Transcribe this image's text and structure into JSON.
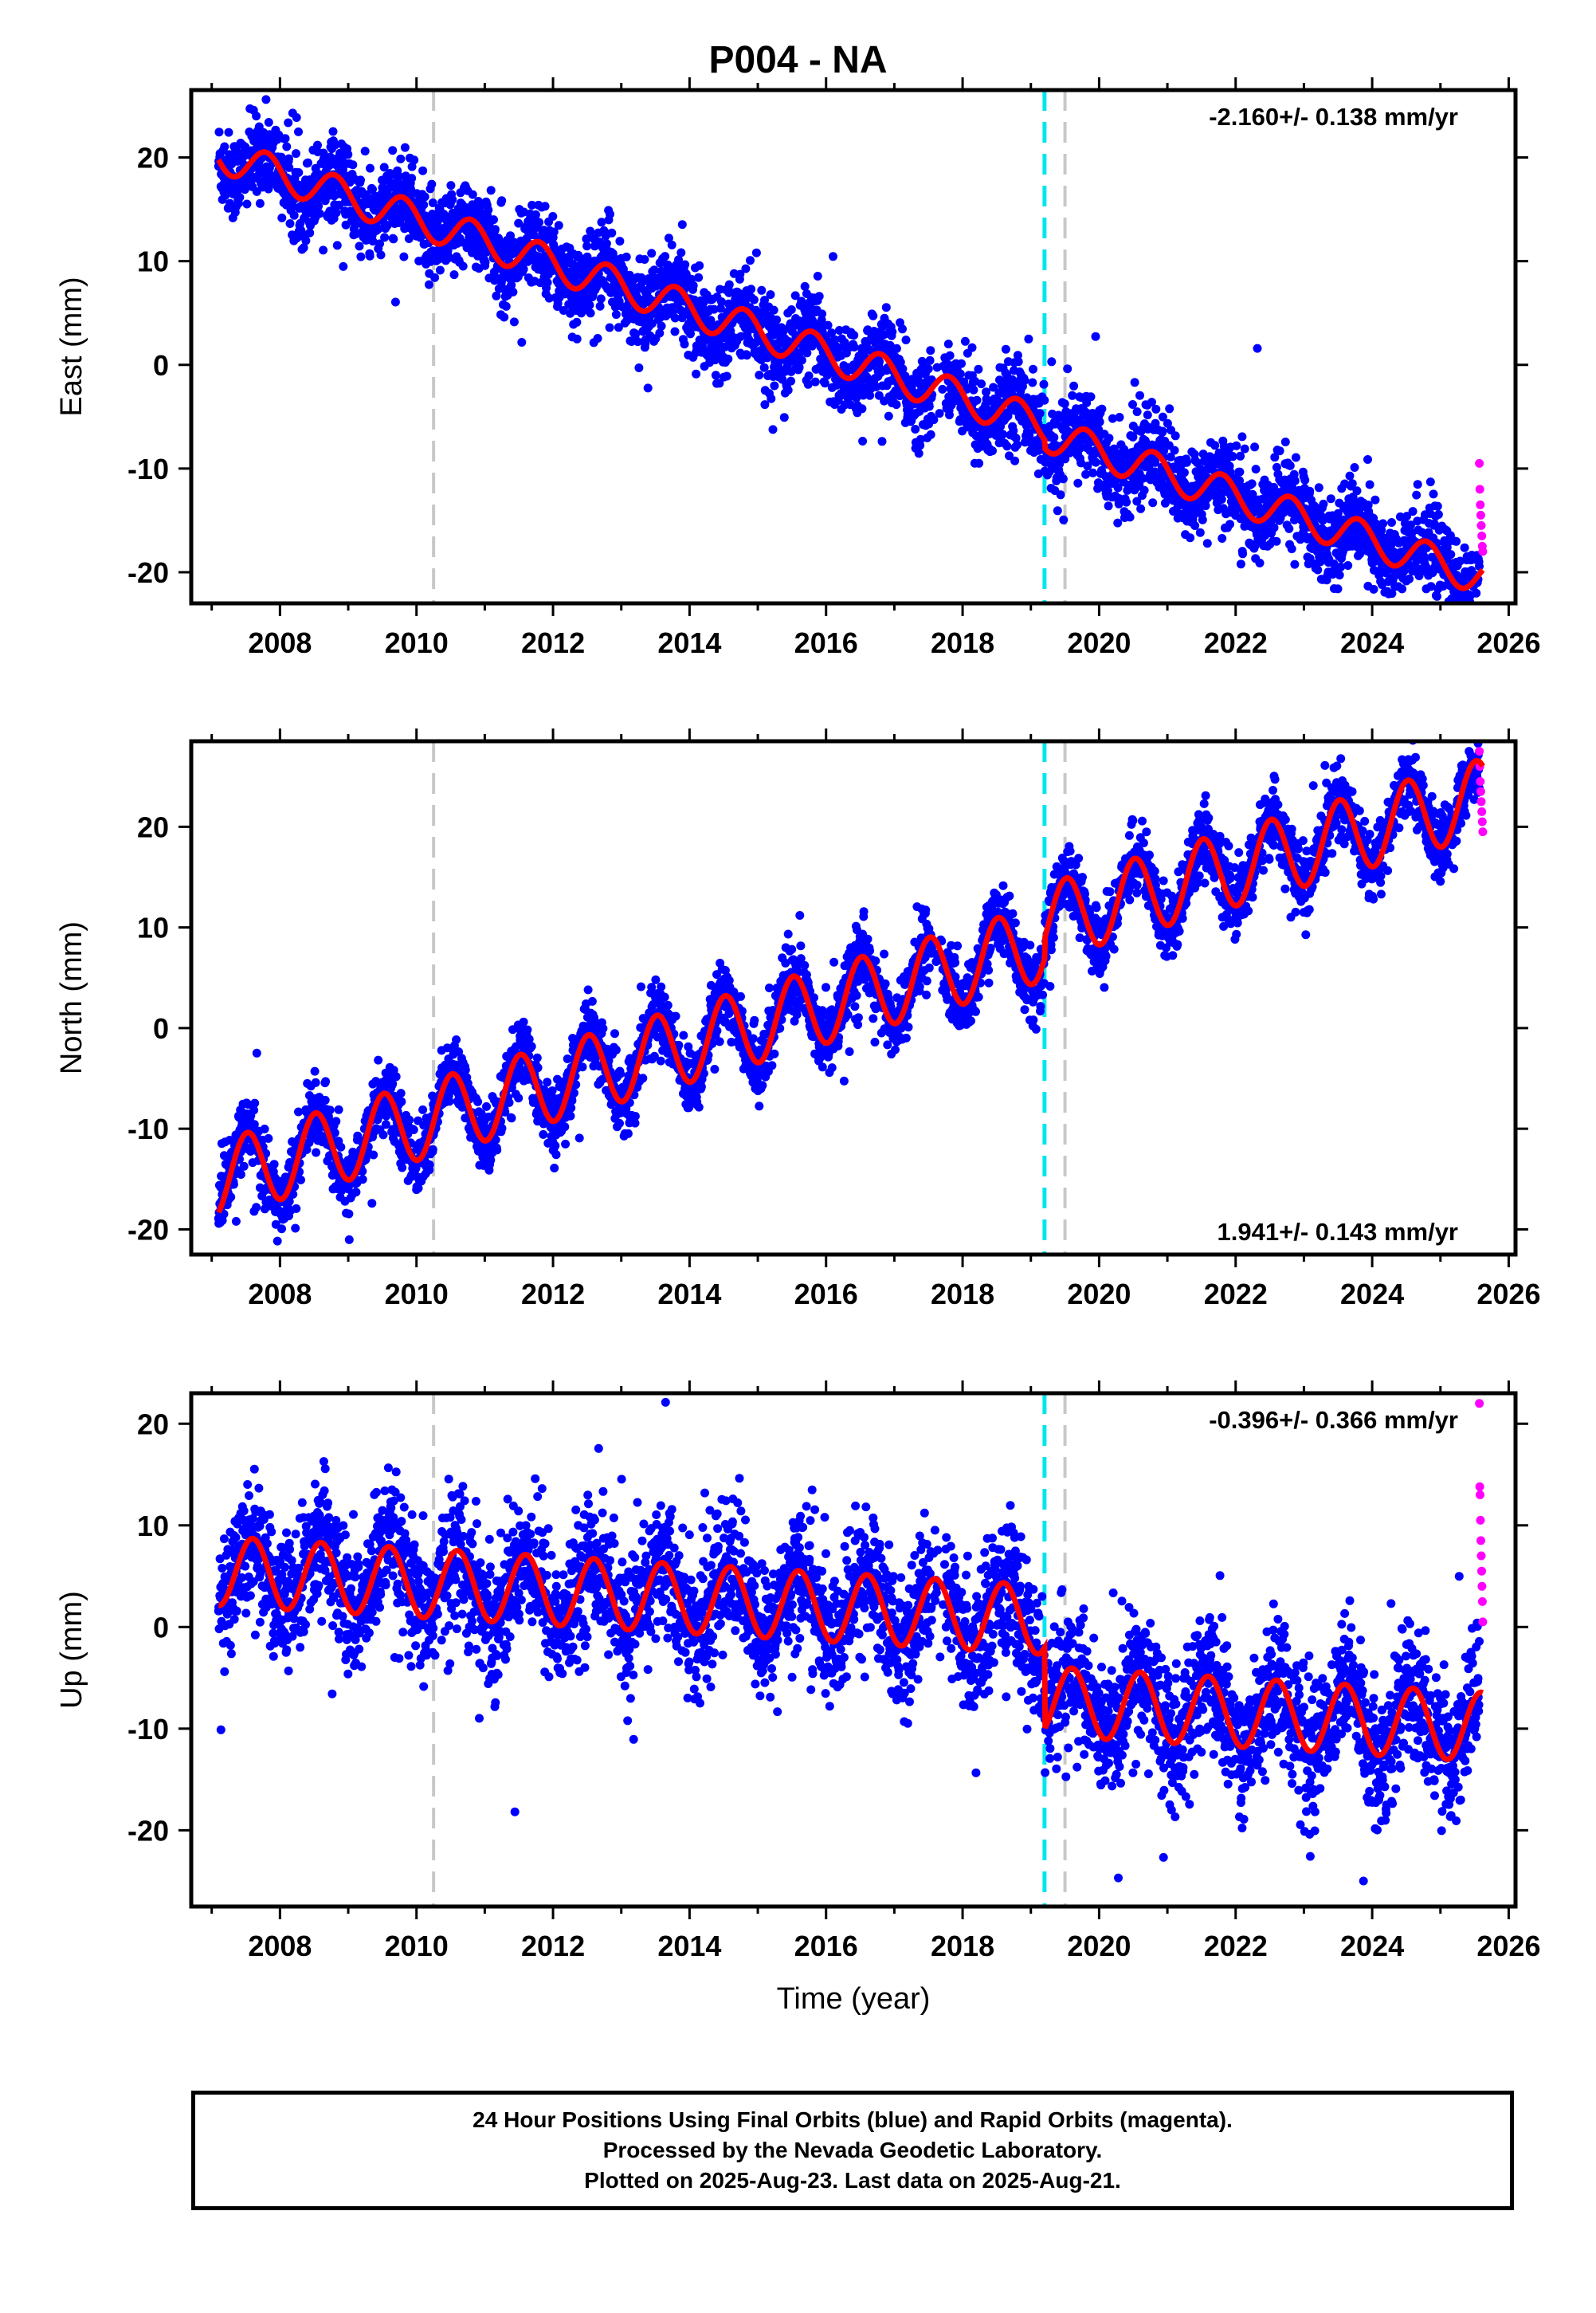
{
  "title": "P004 - NA",
  "colors": {
    "final_orbits": "#0000ff",
    "rapid_orbits": "#ff00ff",
    "model": "#ff0000",
    "equipment_change": "#c8c8c8",
    "earthquake": "#00e5ee"
  },
  "footer": {
    "line1": "24 Hour Positions Using Final Orbits (blue) and Rapid Orbits (magenta).",
    "line2": "Processed by the Nevada Geodetic Laboratory.",
    "line3": "Plotted on 2025-Aug-23. Last data on 2025-Aug-21."
  },
  "chart_data": [
    {
      "type": "scatter",
      "component": "east",
      "ylabel": "East (mm)",
      "xlabel": "",
      "xlim": [
        2006.7,
        2026.1
      ],
      "ylim": [
        -23,
        26.5
      ],
      "xticks": [
        2008,
        2010,
        2012,
        2014,
        2016,
        2018,
        2020,
        2022,
        2024,
        2026
      ],
      "yticks": [
        -20,
        -10,
        0,
        10,
        20
      ],
      "rate_label": "-2.160+/- 0.138 mm/yr",
      "rate_label_position": "top-right",
      "trend": {
        "start": 2007.1,
        "end": 2025.62,
        "value_at_start": 20.3,
        "rate": -2.16,
        "seasonal_amplitude": 1.7,
        "seasonal_phase": 0.55,
        "scatter": 2.0
      },
      "offsets": [
        {
          "time": 2019.2,
          "size": -0.8
        }
      ],
      "rapid_points": {
        "start": 2025.57,
        "end": 2025.62,
        "values": [
          -9.5,
          -12,
          -13.5,
          -14.5,
          -15.5,
          -16.5,
          -17.5,
          -18
        ]
      },
      "equipment_changes": [
        2010.25,
        2019.5
      ],
      "earthquakes": [
        2019.2
      ]
    },
    {
      "type": "scatter",
      "component": "north",
      "ylabel": "North (mm)",
      "xlabel": "",
      "xlim": [
        2006.7,
        2026.1
      ],
      "ylim": [
        -22.5,
        28.5
      ],
      "xticks": [
        2008,
        2010,
        2012,
        2014,
        2016,
        2018,
        2020,
        2022,
        2024,
        2026
      ],
      "yticks": [
        -20,
        -10,
        0,
        10,
        20
      ],
      "rate_label": "1.941+/- 0.143 mm/yr",
      "rate_label_position": "bottom-right",
      "trend": {
        "start": 2007.1,
        "end": 2025.62,
        "value_at_start": -15.0,
        "rate": 1.941,
        "seasonal_amplitude": 3.8,
        "seasonal_phase": 0.27,
        "scatter": 1.6
      },
      "offsets": [
        {
          "time": 2019.2,
          "size": 2.0
        }
      ],
      "rapid_points": {
        "start": 2025.57,
        "end": 2025.62,
        "values": [
          27.5,
          26,
          24.5,
          23.5,
          22.5,
          21.5,
          20.5,
          19.5
        ]
      },
      "equipment_changes": [
        2010.25,
        2019.5
      ],
      "earthquakes": [
        2019.2
      ]
    },
    {
      "type": "scatter",
      "component": "up",
      "ylabel": "Up (mm)",
      "xlabel": "Time (year)",
      "xlim": [
        2006.7,
        2026.1
      ],
      "ylim": [
        -27.5,
        23
      ],
      "xticks": [
        2008,
        2010,
        2012,
        2014,
        2016,
        2018,
        2020,
        2022,
        2024,
        2026
      ],
      "yticks": [
        -20,
        -10,
        0,
        10,
        20
      ],
      "rate_label": "-0.396+/- 0.366 mm/yr",
      "rate_label_position": "top-right",
      "trend": {
        "start": 2007.1,
        "end": 2025.62,
        "value_at_start": 5.5,
        "rate": -0.396,
        "seasonal_amplitude": 3.4,
        "seasonal_phase": 0.35,
        "scatter": 3.2
      },
      "offsets": [
        {
          "time": 2019.2,
          "size": -8.0
        }
      ],
      "rapid_points": {
        "start": 2025.57,
        "end": 2025.62,
        "values": [
          22,
          13.8,
          13,
          10.5,
          8.5,
          7,
          5.5,
          4,
          2.5,
          0.5
        ]
      },
      "equipment_changes": [
        2010.25,
        2019.5
      ],
      "earthquakes": [
        2019.2
      ]
    }
  ]
}
